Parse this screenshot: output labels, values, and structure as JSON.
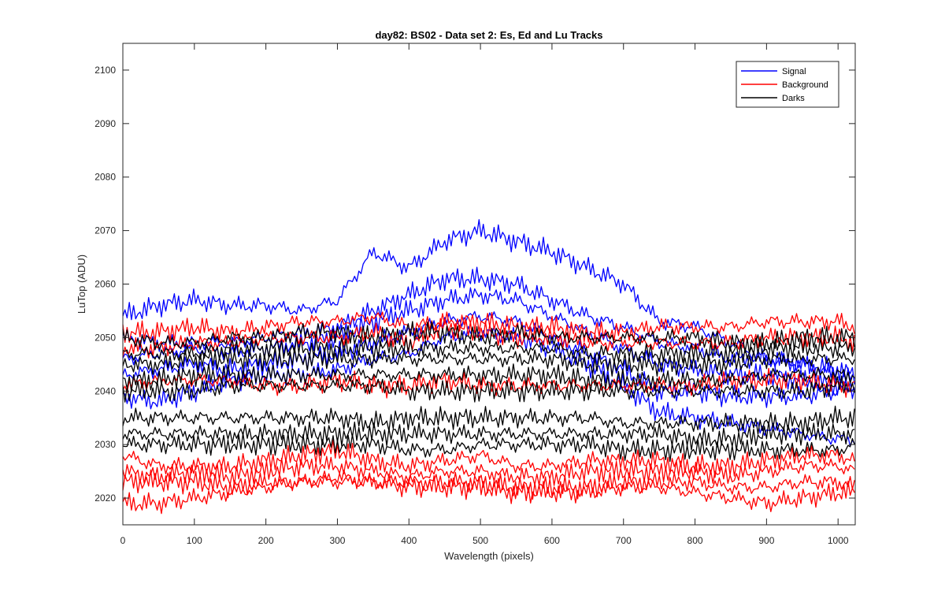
{
  "chart_data": {
    "type": "line",
    "title": "day82: BS02 - Data set 2: Es, Ed and Lu Tracks",
    "xlabel": "Wavelength (pixels)",
    "ylabel": "LuTop (ADU)",
    "xlim": [
      0,
      1024
    ],
    "ylim": [
      2015,
      2105
    ],
    "xticks": [
      0,
      100,
      200,
      300,
      400,
      500,
      600,
      700,
      800,
      900,
      1000
    ],
    "yticks": [
      2020,
      2030,
      2040,
      2050,
      2060,
      2070,
      2080,
      2090,
      2100
    ],
    "grid": false,
    "legend_position": "top-right",
    "legend": [
      {
        "label": "Signal",
        "color": "#0000ff"
      },
      {
        "label": "Background",
        "color": "#ff0000"
      },
      {
        "label": "Darks",
        "color": "#000000"
      }
    ],
    "x": [
      0,
      50,
      100,
      150,
      200,
      250,
      300,
      350,
      400,
      450,
      500,
      550,
      600,
      650,
      700,
      750,
      800,
      850,
      900,
      950,
      1000,
      1024
    ],
    "series": [
      {
        "group": "Signal",
        "color": "#0000ff",
        "values": [
          2054,
          2056,
          2057,
          2056,
          2056,
          2055,
          2057,
          2066,
          2063,
          2068,
          2070,
          2068,
          2066,
          2063,
          2060,
          2053,
          2052,
          2049,
          2046,
          2045,
          2043,
          2042
        ]
      },
      {
        "group": "Signal",
        "color": "#0000ff",
        "values": [
          2050,
          2049,
          2049,
          2049,
          2050,
          2051,
          2052,
          2055,
          2058,
          2061,
          2061,
          2060,
          2057,
          2054,
          2052,
          2049,
          2048,
          2046,
          2046,
          2045,
          2044,
          2043
        ]
      },
      {
        "group": "Signal",
        "color": "#0000ff",
        "values": [
          2046,
          2047,
          2048,
          2047,
          2048,
          2049,
          2050,
          2053,
          2055,
          2057,
          2058,
          2057,
          2054,
          2051,
          2048,
          2045,
          2044,
          2043,
          2043,
          2042,
          2041,
          2040
        ]
      },
      {
        "group": "Signal",
        "color": "#0000ff",
        "values": [
          2043,
          2044,
          2045,
          2044,
          2045,
          2046,
          2047,
          2049,
          2051,
          2053,
          2054,
          2053,
          2050,
          2047,
          2044,
          2040,
          2040,
          2039,
          2039,
          2039,
          2040,
          2041
        ]
      },
      {
        "group": "Signal",
        "color": "#0000ff",
        "values": [
          2039,
          2038,
          2040,
          2042,
          2043,
          2043,
          2044,
          2046,
          2047,
          2050,
          2051,
          2050,
          2048,
          2045,
          2041,
          2036,
          2035,
          2034,
          2033,
          2032,
          2031,
          2031
        ]
      },
      {
        "group": "Background",
        "color": "#ff0000",
        "values": [
          2051,
          2051,
          2052,
          2051,
          2052,
          2053,
          2053,
          2054,
          2052,
          2053,
          2053,
          2052,
          2052,
          2051,
          2051,
          2052,
          2052,
          2052,
          2053,
          2053,
          2053,
          2052
        ]
      },
      {
        "group": "Background",
        "color": "#ff0000",
        "values": [
          2048,
          2048,
          2049,
          2049,
          2050,
          2050,
          2050,
          2051,
          2049,
          2052,
          2051,
          2050,
          2050,
          2049,
          2049,
          2049,
          2049,
          2049,
          2050,
          2050,
          2050,
          2049
        ]
      },
      {
        "group": "Background",
        "color": "#ff0000",
        "values": [
          2041,
          2042,
          2042,
          2042,
          2041,
          2041,
          2042,
          2041,
          2041,
          2042,
          2041,
          2041,
          2041,
          2041,
          2041,
          2041,
          2041,
          2042,
          2042,
          2042,
          2041,
          2041
        ]
      },
      {
        "group": "Background",
        "color": "#ff0000",
        "values": [
          2028,
          2026,
          2026,
          2026,
          2027,
          2028,
          2029,
          2027,
          2026,
          2027,
          2028,
          2026,
          2026,
          2027,
          2027,
          2027,
          2026,
          2026,
          2027,
          2028,
          2028,
          2027
        ]
      },
      {
        "group": "Background",
        "color": "#ff0000",
        "values": [
          2025,
          2024,
          2025,
          2024,
          2025,
          2026,
          2026,
          2025,
          2024,
          2025,
          2025,
          2024,
          2024,
          2025,
          2025,
          2025,
          2025,
          2024,
          2025,
          2026,
          2026,
          2025
        ]
      },
      {
        "group": "Background",
        "color": "#ff0000",
        "values": [
          2023,
          2023,
          2023,
          2022,
          2023,
          2023,
          2023,
          2023,
          2023,
          2023,
          2023,
          2022,
          2022,
          2022,
          2023,
          2023,
          2023,
          2022,
          2022,
          2023,
          2023,
          2022
        ]
      },
      {
        "group": "Background",
        "color": "#ff0000",
        "values": [
          2019,
          2019,
          2020,
          2021,
          2022,
          2023,
          2024,
          2023,
          2022,
          2022,
          2022,
          2021,
          2021,
          2021,
          2022,
          2022,
          2021,
          2020,
          2019,
          2020,
          2021,
          2021
        ]
      },
      {
        "group": "Darks",
        "color": "#000000",
        "values": [
          2050,
          2049,
          2049,
          2050,
          2050,
          2051,
          2051,
          2050,
          2051,
          2051,
          2050,
          2051,
          2050,
          2050,
          2050,
          2050,
          2050,
          2049,
          2049,
          2050,
          2050,
          2050
        ]
      },
      {
        "group": "Darks",
        "color": "#000000",
        "values": [
          2047,
          2047,
          2047,
          2048,
          2048,
          2048,
          2048,
          2048,
          2048,
          2048,
          2048,
          2048,
          2048,
          2047,
          2047,
          2047,
          2047,
          2047,
          2048,
          2048,
          2048,
          2048
        ]
      },
      {
        "group": "Darks",
        "color": "#000000",
        "values": [
          2045,
          2045,
          2046,
          2046,
          2046,
          2046,
          2046,
          2046,
          2046,
          2046,
          2046,
          2046,
          2046,
          2045,
          2045,
          2045,
          2045,
          2045,
          2046,
          2046,
          2046,
          2046
        ]
      },
      {
        "group": "Darks",
        "color": "#000000",
        "values": [
          2042,
          2042,
          2043,
          2043,
          2043,
          2043,
          2043,
          2043,
          2043,
          2043,
          2043,
          2043,
          2043,
          2042,
          2042,
          2042,
          2042,
          2042,
          2043,
          2043,
          2043,
          2043
        ]
      },
      {
        "group": "Darks",
        "color": "#000000",
        "values": [
          2040,
          2040,
          2040,
          2041,
          2041,
          2041,
          2041,
          2041,
          2040,
          2040,
          2040,
          2040,
          2040,
          2040,
          2040,
          2040,
          2040,
          2040,
          2040,
          2040,
          2041,
          2041
        ]
      },
      {
        "group": "Darks",
        "color": "#000000",
        "values": [
          2035,
          2035,
          2035,
          2035,
          2035,
          2035,
          2035,
          2034,
          2035,
          2035,
          2035,
          2035,
          2035,
          2035,
          2034,
          2034,
          2034,
          2034,
          2034,
          2034,
          2035,
          2035
        ]
      },
      {
        "group": "Darks",
        "color": "#000000",
        "values": [
          2032,
          2032,
          2032,
          2032,
          2032,
          2032,
          2032,
          2032,
          2032,
          2032,
          2032,
          2032,
          2032,
          2032,
          2032,
          2032,
          2031,
          2031,
          2032,
          2032,
          2032,
          2032
        ]
      },
      {
        "group": "Darks",
        "color": "#000000",
        "values": [
          2030,
          2030,
          2030,
          2030,
          2030,
          2030,
          2030,
          2030,
          2029,
          2029,
          2030,
          2030,
          2030,
          2030,
          2029,
          2029,
          2029,
          2029,
          2029,
          2029,
          2029,
          2030
        ]
      }
    ]
  }
}
